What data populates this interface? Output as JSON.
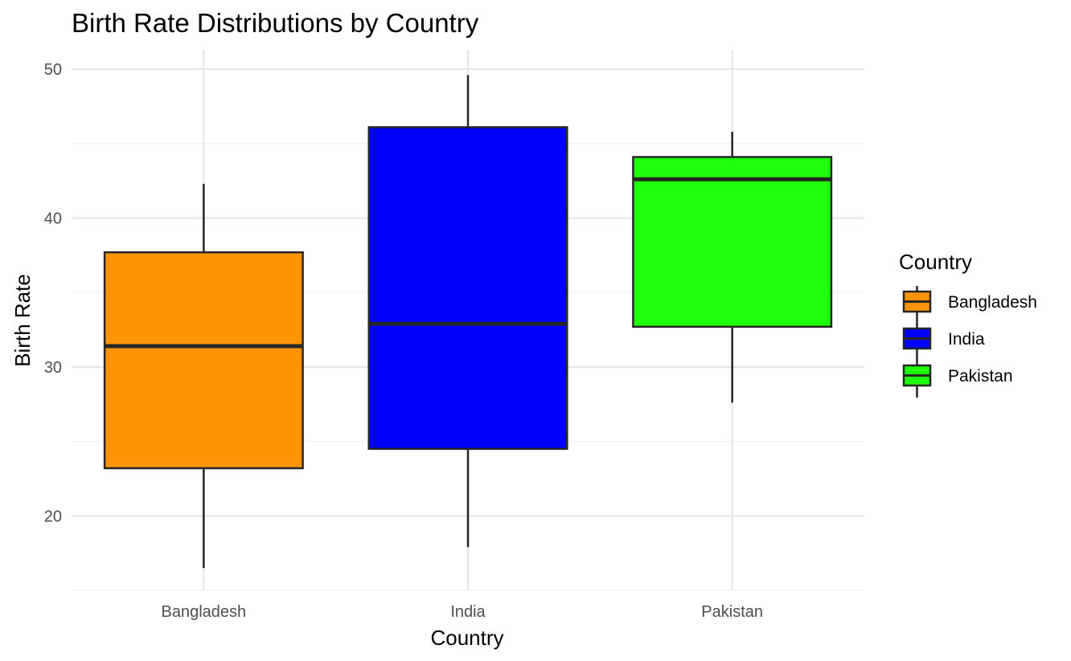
{
  "chart_data": {
    "type": "boxplot",
    "title": "Birth Rate Distributions by Country",
    "xlabel": "Country",
    "ylabel": "Birth Rate",
    "ylim": [
      15,
      51.3
    ],
    "yticks": [
      20,
      30,
      40,
      50
    ],
    "grid": true,
    "legend": {
      "title": "Country",
      "position": "right"
    },
    "categories": [
      "Bangladesh",
      "India",
      "Pakistan"
    ],
    "boxes": [
      {
        "category": "Bangladesh",
        "whisker_low": 16.5,
        "q1": 23.2,
        "median": 31.4,
        "q3": 37.7,
        "whisker_high": 42.3,
        "color": "#FF9409"
      },
      {
        "category": "India",
        "whisker_low": 17.9,
        "q1": 24.5,
        "median": 32.9,
        "q3": 46.1,
        "whisker_high": 49.6,
        "color": "#0000FF"
      },
      {
        "category": "Pakistan",
        "whisker_low": 27.6,
        "q1": 32.7,
        "median": 42.6,
        "q3": 44.1,
        "whisker_high": 45.8,
        "color": "#1EFF0B"
      }
    ]
  }
}
